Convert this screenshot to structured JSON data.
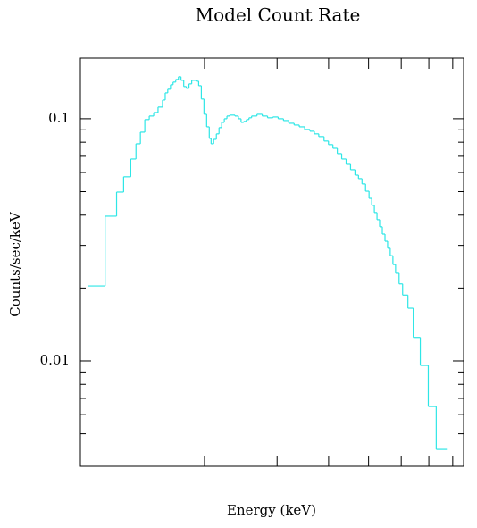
{
  "chart_data": {
    "type": "histogram",
    "title": "Model Count Rate",
    "xlabel": "Energy (keV)",
    "ylabel": "Counts/sec/keV",
    "color": "#2ee6e6",
    "xscale": "log",
    "yscale": "log",
    "xlim": [
      1,
      8.5
    ],
    "xticks": [
      2,
      3,
      4,
      5,
      6,
      7,
      8
    ],
    "ylim": [
      0.00367,
      0.178
    ],
    "yticks": [
      0.01,
      0.1
    ],
    "yminorticks": [
      0.005,
      0.006,
      0.007,
      0.008,
      0.009,
      0.02,
      0.03,
      0.04,
      0.05,
      0.06,
      0.07,
      0.08,
      0.09
    ],
    "bins": [
      1.045,
      1.148,
      1.224,
      1.273,
      1.325,
      1.364,
      1.398,
      1.433,
      1.469,
      1.506,
      1.543,
      1.582,
      1.606,
      1.629,
      1.654,
      1.678,
      1.703,
      1.729,
      1.754,
      1.781,
      1.807,
      1.834,
      1.862,
      1.908,
      1.936,
      1.965,
      1.994,
      2.024,
      2.054,
      2.075,
      2.105,
      2.137,
      2.169,
      2.201,
      2.234,
      2.267,
      2.301,
      2.37,
      2.417,
      2.453,
      2.489,
      2.527,
      2.564,
      2.602,
      2.681,
      2.761,
      2.844,
      2.93,
      3.018,
      3.109,
      3.202,
      3.299,
      3.396,
      3.499,
      3.604,
      3.694,
      3.786,
      3.899,
      3.997,
      4.097,
      4.199,
      4.303,
      4.411,
      4.521,
      4.634,
      4.726,
      4.82,
      4.916,
      5.013,
      5.088,
      5.164,
      5.241,
      5.318,
      5.399,
      5.48,
      5.561,
      5.643,
      5.728,
      5.814,
      5.929,
      6.047,
      6.229,
      6.416,
      6.675,
      6.979,
      7.295,
      7.741
    ],
    "values": [
      0.0204,
      0.0396,
      0.0498,
      0.0576,
      0.0682,
      0.0788,
      0.088,
      0.0992,
      0.1026,
      0.1061,
      0.1117,
      0.1195,
      0.1279,
      0.1324,
      0.1381,
      0.1417,
      0.1453,
      0.1491,
      0.1441,
      0.1358,
      0.1335,
      0.1393,
      0.1441,
      0.1429,
      0.1369,
      0.1206,
      0.1043,
      0.0926,
      0.0829,
      0.0788,
      0.0822,
      0.0866,
      0.0919,
      0.0966,
      0.1,
      0.1026,
      0.1035,
      0.1026,
      0.1,
      0.0966,
      0.0975,
      0.0992,
      0.1009,
      0.1026,
      0.1043,
      0.1026,
      0.1009,
      0.1017,
      0.1,
      0.0983,
      0.0958,
      0.0942,
      0.0926,
      0.0903,
      0.0888,
      0.0866,
      0.0844,
      0.0809,
      0.0782,
      0.0755,
      0.0718,
      0.0682,
      0.0648,
      0.0616,
      0.0585,
      0.0566,
      0.0538,
      0.0502,
      0.0469,
      0.0439,
      0.041,
      0.0383,
      0.0358,
      0.0334,
      0.0312,
      0.0292,
      0.0272,
      0.025,
      0.023,
      0.0208,
      0.0187,
      0.0165,
      0.0125,
      0.00958,
      0.00648,
      0.00431
    ]
  }
}
